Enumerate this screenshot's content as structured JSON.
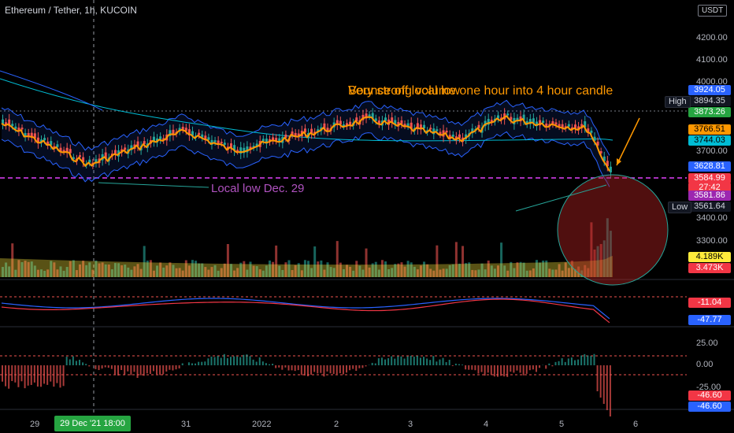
{
  "header": {
    "symbol_title": "Ethereum / Tether, 1h, KUCOIN",
    "currency_badge": "USDT"
  },
  "price_axis": {
    "ticks": [
      "4200.00",
      "4100.00",
      "4000.00",
      "3700.00",
      "3400.00",
      "3300.00"
    ]
  },
  "price_tags": [
    {
      "text": "3924.05",
      "bg": "#2962ff",
      "fg": "#ffffff"
    },
    {
      "text": "3894.35",
      "bg": "#131722",
      "fg": "#d1d4dc"
    },
    {
      "text": "3873.26",
      "bg": "#26a541",
      "fg": "#ffffff"
    },
    {
      "text": "3766.51",
      "bg": "#ff9800",
      "fg": "#000000"
    },
    {
      "text": "3744.03",
      "bg": "#00bcd4",
      "fg": "#000000"
    },
    {
      "text": "3628.81",
      "bg": "#2962ff",
      "fg": "#ffffff"
    },
    {
      "text": "3584.99",
      "bg": "#f23645",
      "fg": "#ffffff"
    },
    {
      "text": "27:42",
      "bg": "#f23645",
      "fg": "#ffffff"
    },
    {
      "text": "3581.86",
      "bg": "#9c27b0",
      "fg": "#ffffff"
    },
    {
      "text": "3561.64",
      "bg": "#131722",
      "fg": "#d1d4dc"
    }
  ],
  "high_label": "High",
  "low_label": "Low",
  "volume_tags": [
    {
      "text": "4.189K",
      "bg": "#ffeb3b",
      "fg": "#000000"
    },
    {
      "text": "3.473K",
      "bg": "#f23645",
      "fg": "#ffffff"
    }
  ],
  "macd_tags": [
    {
      "text": "-11.04",
      "bg": "#f23645",
      "fg": "#ffffff"
    },
    {
      "text": "-47.77",
      "bg": "#2962ff",
      "fg": "#ffffff"
    }
  ],
  "osc_axis": {
    "ticks": [
      "25.00",
      "0.00",
      "-25.00"
    ]
  },
  "osc_tags": [
    {
      "text": "-46.60",
      "bg": "#f23645",
      "fg": "#ffffff"
    },
    {
      "text": "-46.60",
      "bg": "#2962ff",
      "fg": "#ffffff"
    }
  ],
  "time_axis": {
    "labels": [
      "29",
      "31",
      "2022",
      "2",
      "3",
      "4",
      "5",
      "6"
    ],
    "cursor_label": "29 Dec '21   18:00"
  },
  "annotations": {
    "text_a": "Bounce off local low",
    "text_b": "Very strong volume one hour into 4 hour candle",
    "text_c": "Local low Dec. 29"
  },
  "colors": {
    "up": "#26a69a",
    "down": "#ef5350",
    "band": "#2962ff",
    "ema_orange": "#ff9800",
    "ma_teal": "#00bcd4",
    "annotation_orange": "#ff9800",
    "annotation_purple": "#b052c0"
  }
}
